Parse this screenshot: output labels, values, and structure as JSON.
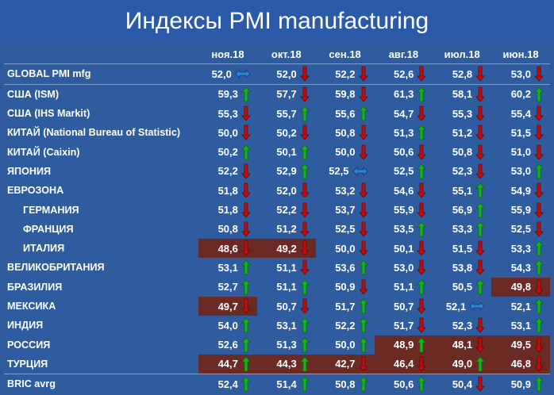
{
  "title": "Индексы PMI manufacturing",
  "colors": {
    "up": "#16b31e",
    "down": "#c00d0d",
    "flat": "#2e86d6",
    "highlight": "#6b2a24"
  },
  "chart_data": {
    "type": "table",
    "title": "Индексы PMI manufacturing",
    "columns": [
      "ноя.18",
      "окт.18",
      "сен.18",
      "авг.18",
      "июл.18",
      "июн.18"
    ],
    "rows": [
      {
        "label": "GLOBAL PMI mfg",
        "indent": false,
        "sep": false,
        "values": [
          "52,0",
          "52,0",
          "52,2",
          "52,6",
          "52,8",
          "53,0"
        ],
        "arrows": [
          "flat",
          "down",
          "down",
          "down",
          "down",
          "down"
        ],
        "highlight": [
          false,
          false,
          false,
          false,
          false,
          false
        ]
      },
      {
        "label": "США (ISM)",
        "indent": false,
        "sep": true,
        "values": [
          "59,3",
          "57,7",
          "59,8",
          "61,3",
          "58,1",
          "60,2"
        ],
        "arrows": [
          "up",
          "down",
          "down",
          "up",
          "down",
          "up"
        ],
        "highlight": [
          false,
          false,
          false,
          false,
          false,
          false
        ]
      },
      {
        "label": "США (IHS Markit)",
        "indent": false,
        "sep": false,
        "values": [
          "55,3",
          "55,7",
          "55,6",
          "54,7",
          "55,3",
          "55,4"
        ],
        "arrows": [
          "down",
          "up",
          "up",
          "down",
          "down",
          "down"
        ],
        "highlight": [
          false,
          false,
          false,
          false,
          false,
          false
        ]
      },
      {
        "label": "КИТАЙ (National Bureau of Statistic)",
        "indent": false,
        "sep": false,
        "values": [
          "50,0",
          "50,2",
          "50,8",
          "51,3",
          "51,2",
          "51,5"
        ],
        "arrows": [
          "down",
          "down",
          "down",
          "up",
          "down",
          "down"
        ],
        "highlight": [
          false,
          false,
          false,
          false,
          false,
          false
        ]
      },
      {
        "label": "КИТАЙ (Caixin)",
        "indent": false,
        "sep": false,
        "values": [
          "50,2",
          "50,1",
          "50,0",
          "50,6",
          "50,8",
          "51,0"
        ],
        "arrows": [
          "up",
          "up",
          "down",
          "down",
          "down",
          "down"
        ],
        "highlight": [
          false,
          false,
          false,
          false,
          false,
          false
        ]
      },
      {
        "label": "ЯПОНИЯ",
        "indent": false,
        "sep": false,
        "values": [
          "52,2",
          "52,9",
          "52,5",
          "52,5",
          "52,3",
          "53,0"
        ],
        "arrows": [
          "down",
          "up",
          "flat",
          "up",
          "down",
          "up"
        ],
        "highlight": [
          false,
          false,
          false,
          false,
          false,
          false
        ]
      },
      {
        "label": "ЕВРОЗОНА",
        "indent": false,
        "sep": false,
        "values": [
          "51,8",
          "52,0",
          "53,2",
          "54,6",
          "55,1",
          "54,9"
        ],
        "arrows": [
          "down",
          "down",
          "down",
          "down",
          "up",
          "down"
        ],
        "highlight": [
          false,
          false,
          false,
          false,
          false,
          false
        ]
      },
      {
        "label": "ГЕРМАНИЯ",
        "indent": true,
        "sep": false,
        "values": [
          "51,8",
          "52,2",
          "53,7",
          "55,9",
          "56,9",
          "55,9"
        ],
        "arrows": [
          "down",
          "down",
          "down",
          "down",
          "up",
          "down"
        ],
        "highlight": [
          false,
          false,
          false,
          false,
          false,
          false
        ]
      },
      {
        "label": "ФРАНЦИЯ",
        "indent": true,
        "sep": false,
        "values": [
          "50,8",
          "51,2",
          "52,5",
          "53,5",
          "53,3",
          "52,5"
        ],
        "arrows": [
          "down",
          "down",
          "down",
          "up",
          "up",
          "down"
        ],
        "highlight": [
          false,
          false,
          false,
          false,
          false,
          false
        ]
      },
      {
        "label": "ИТАЛИЯ",
        "indent": true,
        "sep": false,
        "values": [
          "48,6",
          "49,2",
          "50,0",
          "50,1",
          "51,5",
          "53,3"
        ],
        "arrows": [
          "down",
          "down",
          "down",
          "down",
          "down",
          "up"
        ],
        "highlight": [
          true,
          true,
          false,
          false,
          false,
          false
        ]
      },
      {
        "label": "ВЕЛИКОБРИТАНИЯ",
        "indent": false,
        "sep": false,
        "values": [
          "53,1",
          "51,1",
          "53,6",
          "53,0",
          "53,8",
          "54,3"
        ],
        "arrows": [
          "up",
          "down",
          "up",
          "down",
          "down",
          "up"
        ],
        "highlight": [
          false,
          false,
          false,
          false,
          false,
          false
        ]
      },
      {
        "label": "БРАЗИЛИЯ",
        "indent": false,
        "sep": false,
        "values": [
          "52,7",
          "51,1",
          "50,9",
          "51,1",
          "50,5",
          "49,8"
        ],
        "arrows": [
          "up",
          "up",
          "down",
          "up",
          "up",
          "down"
        ],
        "highlight": [
          false,
          false,
          false,
          false,
          false,
          true
        ]
      },
      {
        "label": "МЕКСИКА",
        "indent": false,
        "sep": false,
        "values": [
          "49,7",
          "50,7",
          "51,7",
          "50,7",
          "52,1",
          "52,1"
        ],
        "arrows": [
          "down",
          "down",
          "up",
          "down",
          "flat",
          "up"
        ],
        "highlight": [
          true,
          false,
          false,
          false,
          false,
          false
        ]
      },
      {
        "label": "ИНДИЯ",
        "indent": false,
        "sep": false,
        "values": [
          "54,0",
          "53,1",
          "52,2",
          "51,7",
          "52,3",
          "53,1"
        ],
        "arrows": [
          "up",
          "up",
          "up",
          "down",
          "down",
          "up"
        ],
        "highlight": [
          false,
          false,
          false,
          false,
          false,
          false
        ]
      },
      {
        "label": "РОССИЯ",
        "indent": false,
        "sep": false,
        "values": [
          "52,6",
          "51,3",
          "50,0",
          "48,9",
          "48,1",
          "49,5"
        ],
        "arrows": [
          "up",
          "up",
          "up",
          "up",
          "down",
          "down"
        ],
        "highlight": [
          false,
          false,
          false,
          true,
          true,
          true
        ]
      },
      {
        "label": "ТУРЦИЯ",
        "indent": false,
        "sep": false,
        "values": [
          "44,7",
          "44,3",
          "42,7",
          "46,4",
          "49,0",
          "46,8"
        ],
        "arrows": [
          "up",
          "up",
          "down",
          "down",
          "up",
          "down"
        ],
        "highlight": [
          true,
          true,
          true,
          true,
          true,
          true
        ]
      },
      {
        "label": "BRIC avrg",
        "indent": false,
        "sep": true,
        "values": [
          "52,4",
          "51,4",
          "50,8",
          "50,6",
          "50,4",
          "50,9"
        ],
        "arrows": [
          "up",
          "up",
          "up",
          "up",
          "down",
          "up"
        ],
        "highlight": [
          false,
          false,
          false,
          false,
          false,
          false
        ]
      }
    ]
  }
}
